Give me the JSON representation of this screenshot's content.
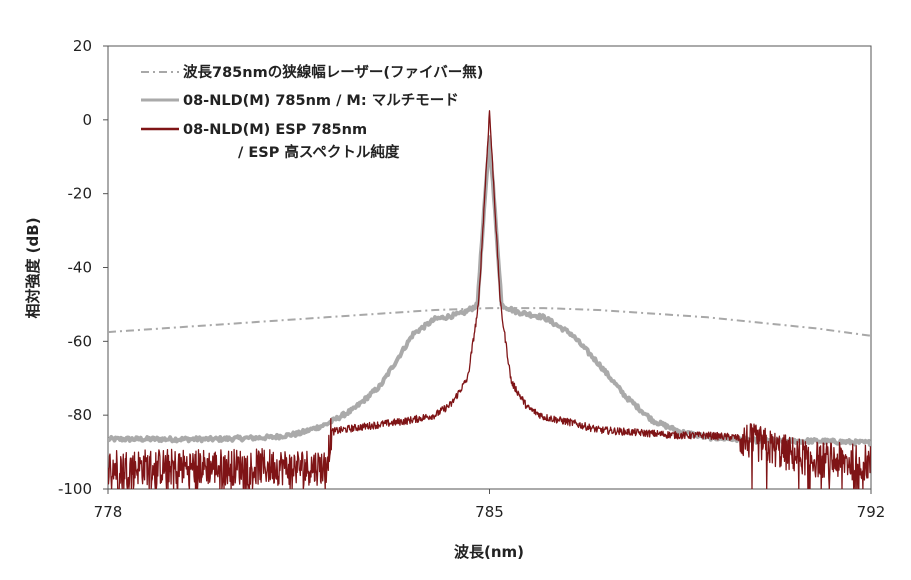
{
  "chart_data": {
    "type": "line",
    "xlabel": "波長(nm)",
    "ylabel": "相対強度 (dB)",
    "xlim": [
      778,
      792
    ],
    "ylim": [
      -100,
      20
    ],
    "x_ticks": [
      "778",
      "785",
      "792"
    ],
    "y_ticks": [
      "20",
      "0",
      "-20",
      "-40",
      "-60",
      "-80",
      "-100"
    ],
    "grid": false,
    "legend_position": "top-left",
    "series": [
      {
        "name": "波長785nmの狭線幅レーザー(ファイバー無)",
        "color": "#a8a8a8",
        "style": "dashdot",
        "x": [
          778,
          779,
          780,
          781,
          782,
          783,
          784,
          785,
          786,
          787,
          788,
          789,
          790,
          791,
          792
        ],
        "y": [
          -57.5,
          -56.5,
          -55.5,
          -54.5,
          -53.5,
          -52.5,
          -51.5,
          -51.0,
          -51.0,
          -51.5,
          -52.5,
          -53.5,
          -55.0,
          -56.5,
          -58.5
        ]
      },
      {
        "name": "08-NLD(M) 785nm / M: マルチモード",
        "color": "#aaaaaa",
        "style": "thick",
        "x": [
          778,
          780,
          781,
          781.5,
          782,
          782.5,
          783,
          783.3,
          783.6,
          784,
          784.5,
          784.8,
          785,
          785.2,
          785.5,
          786,
          786.5,
          787,
          787.5,
          788,
          788.5,
          789,
          790,
          791,
          792
        ],
        "y": [
          -86.5,
          -86.5,
          -86.0,
          -85.0,
          -82.5,
          -78.5,
          -72.0,
          -65.0,
          -58.0,
          -54.0,
          -52.5,
          -50.0,
          -5.0,
          -50.0,
          -52.0,
          -53.5,
          -58.0,
          -66.0,
          -75.0,
          -81.5,
          -84.5,
          -86.0,
          -87.0,
          -87.0,
          -87.5
        ]
      },
      {
        "name": "08-NLD(M) ESP 785nm / ESP 高スペクトル純度",
        "color": "#7f1416",
        "style": "noisy",
        "x": [
          778,
          779,
          780,
          781,
          781.5,
          782,
          782.1,
          782.5,
          783,
          783.5,
          784,
          784.3,
          784.6,
          784.8,
          785,
          785.2,
          785.4,
          785.7,
          786,
          786.5,
          787,
          787.5,
          788,
          788.5,
          789,
          789.5,
          790,
          790.5,
          791,
          792
        ],
        "y": [
          -94,
          -94,
          -94,
          -94,
          -94,
          -94,
          -84.5,
          -83.5,
          -82.5,
          -81.5,
          -80.0,
          -77.0,
          -70.0,
          -50.0,
          2.5,
          -50.0,
          -71.0,
          -78.0,
          -80.5,
          -82.0,
          -84.0,
          -84.5,
          -85.0,
          -85.5,
          -85.5,
          -86.0,
          -88.0,
          -90.5,
          -92.0,
          -93.0
        ]
      }
    ],
    "legend_lines": [
      "波長785nmの狭線幅レーザー(ファイバー無)",
      "08-NLD(M) 785nm  /  M: マルチモード",
      "08-NLD(M) ESP 785nm",
      "/  ESP 高スペクトル純度"
    ]
  }
}
